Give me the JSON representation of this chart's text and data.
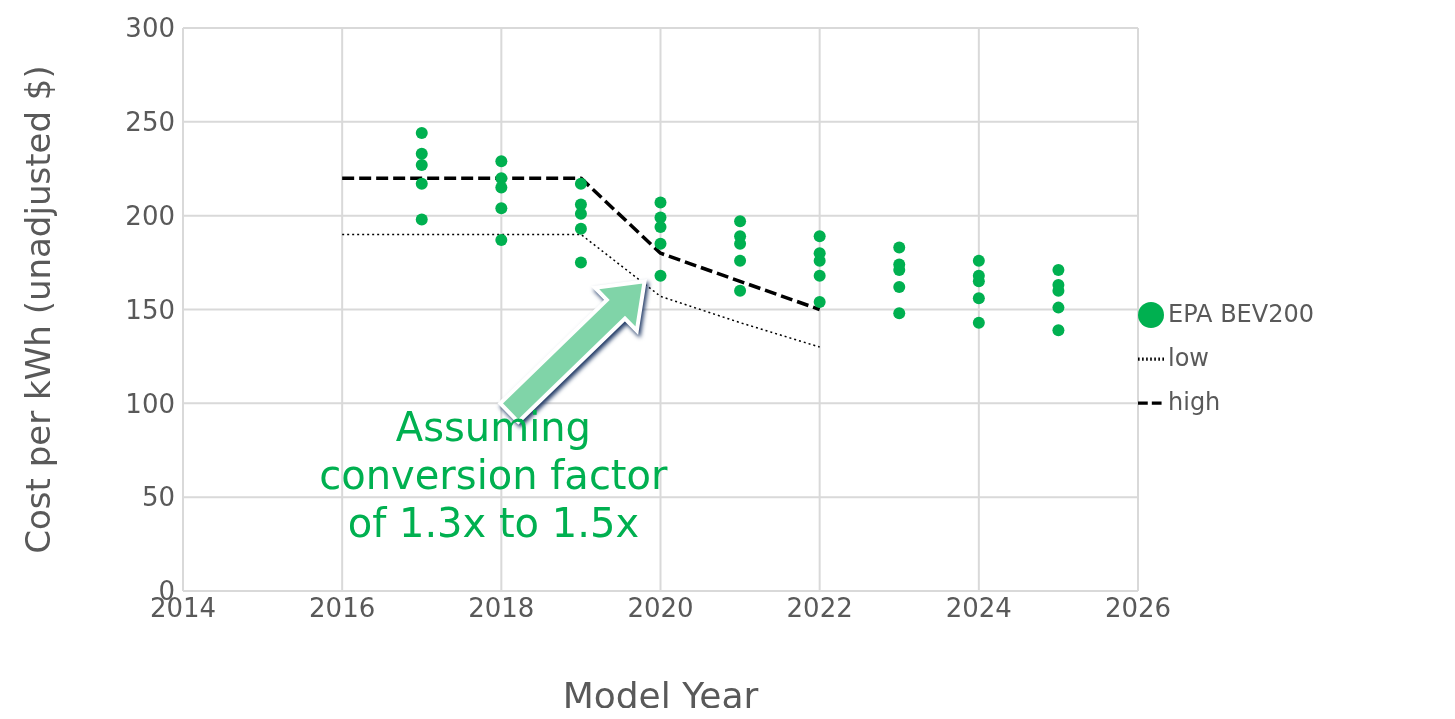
{
  "chart_data": {
    "type": "scatter",
    "xlabel": "Model Year",
    "ylabel": "Cost per kWh (unadjusted $)",
    "xlim": [
      2014,
      2026
    ],
    "xticks": [
      2014,
      2016,
      2018,
      2020,
      2022,
      2024,
      2026
    ],
    "ylim": [
      0,
      300
    ],
    "yticks": [
      0,
      50,
      100,
      150,
      200,
      250,
      300
    ],
    "grid": true,
    "legend": "right",
    "annotations": [
      "Assuming conversion factor of 1.3x to 1.5x"
    ],
    "series": [
      {
        "name": "EPA BEV200",
        "marker": "circle",
        "color": "#00b050",
        "x": [
          2017,
          2017,
          2017,
          2017,
          2017,
          2018,
          2018,
          2018,
          2018,
          2018,
          2019,
          2019,
          2019,
          2019,
          2019,
          2020,
          2020,
          2020,
          2020,
          2020,
          2021,
          2021,
          2021,
          2021,
          2021,
          2022,
          2022,
          2022,
          2022,
          2022,
          2023,
          2023,
          2023,
          2023,
          2023,
          2024,
          2024,
          2024,
          2024,
          2024,
          2025,
          2025,
          2025,
          2025,
          2025
        ],
        "values": [
          244,
          233,
          227,
          217,
          198,
          229,
          220,
          215,
          204,
          187,
          217,
          206,
          201,
          193,
          175,
          207,
          199,
          194,
          185,
          168,
          197,
          189,
          185,
          176,
          160,
          189,
          180,
          176,
          168,
          154,
          183,
          174,
          171,
          162,
          148,
          176,
          168,
          165,
          156,
          143,
          171,
          163,
          160,
          151,
          139
        ]
      },
      {
        "name": "low",
        "type": "line",
        "color": "#000000",
        "line_style": "dotted",
        "x": [
          2016,
          2019,
          2020,
          2021,
          2022
        ],
        "values": [
          190,
          190,
          157,
          143,
          130
        ]
      },
      {
        "name": "high",
        "type": "line",
        "color": "#000000",
        "line_style": "dashed",
        "x": [
          2016,
          2019,
          2020,
          2021,
          2022
        ],
        "values": [
          220,
          220,
          180,
          165,
          150
        ]
      }
    ]
  }
}
